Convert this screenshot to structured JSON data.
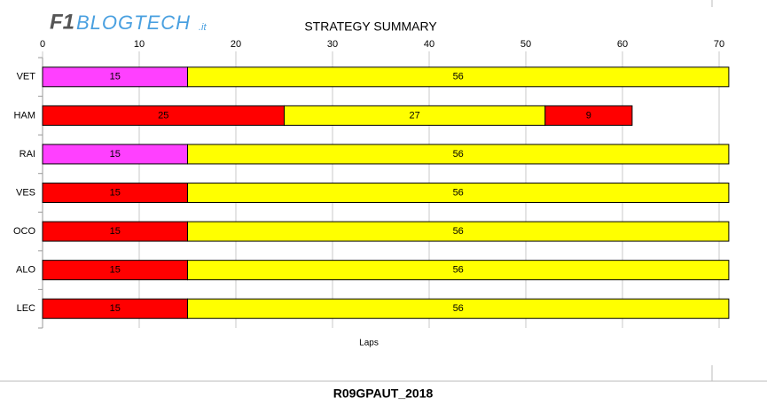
{
  "logo": {
    "brand": "F1",
    "name": "BLOGTECH",
    "suffix": ".it"
  },
  "footer": "R09GPAUT_2018",
  "chart_data": {
    "type": "stacked-bar",
    "orientation": "horizontal",
    "title": "STRATEGY SUMMARY",
    "x_label": "Laps",
    "categories": [
      "VET",
      "HAM",
      "RAI",
      "VES",
      "OCO",
      "ALO",
      "LEC"
    ],
    "series": [
      {
        "values": [
          15,
          25,
          15,
          15,
          15,
          15,
          15
        ],
        "colors": [
          "#ff40ff",
          "#ff0000",
          "#ff40ff",
          "#ff0000",
          "#ff0000",
          "#ff0000",
          "#ff0000"
        ]
      },
      {
        "values": [
          56,
          27,
          56,
          56,
          56,
          56,
          56
        ],
        "colors": [
          "#ffff00",
          "#ffff00",
          "#ffff00",
          "#ffff00",
          "#ffff00",
          "#ffff00",
          "#ffff00"
        ]
      },
      {
        "values": [
          null,
          9,
          null,
          null,
          null,
          null,
          null
        ],
        "colors": [
          null,
          "#ff0000",
          null,
          null,
          null,
          null,
          null
        ]
      }
    ],
    "xlim": [
      0,
      70
    ],
    "xticks": [
      0,
      10,
      20,
      30,
      40,
      50,
      60,
      70
    ],
    "grid": true
  }
}
